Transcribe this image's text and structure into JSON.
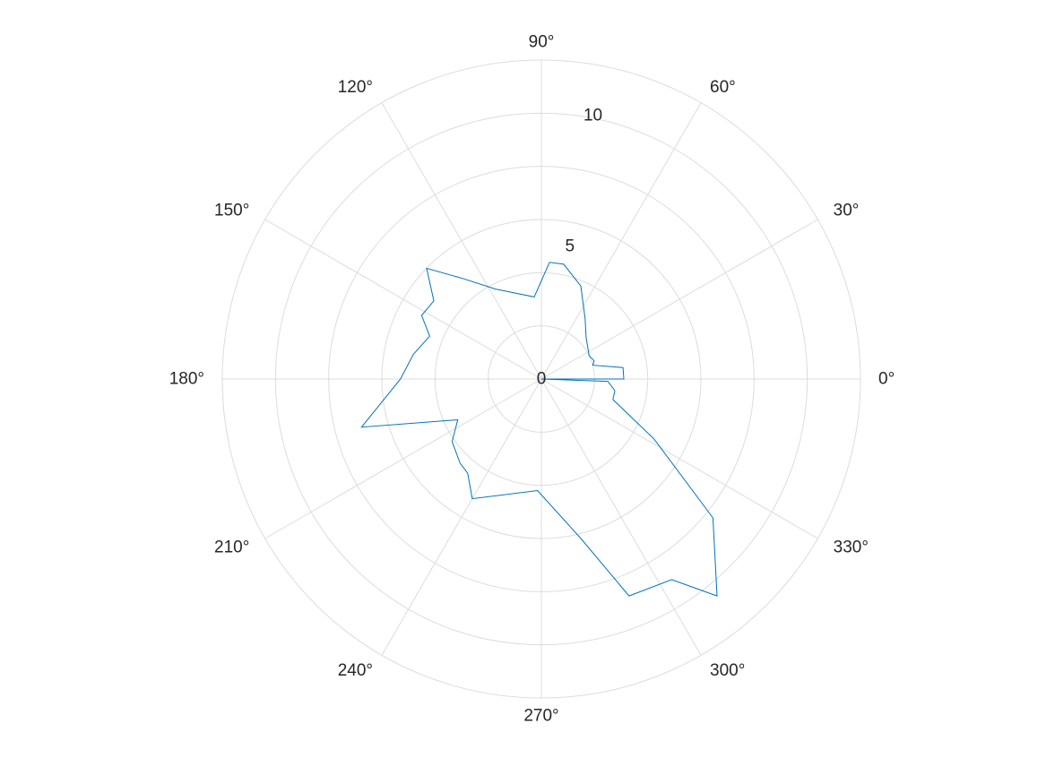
{
  "chart_data": {
    "type": "polar-line",
    "theta_unit": "degrees",
    "theta_direction": "counterclockwise",
    "theta_zero": "right",
    "rlim": [
      0,
      12
    ],
    "r_ticks": [
      0,
      5,
      10
    ],
    "r_tick_labels": [
      "0",
      "5",
      "10"
    ],
    "theta_ticks": [
      0,
      30,
      60,
      90,
      120,
      150,
      180,
      210,
      240,
      270,
      300,
      330
    ],
    "theta_tick_labels": [
      "0°",
      "30°",
      "60°",
      "90°",
      "120°",
      "150°",
      "180°",
      "210°",
      "240°",
      "270°",
      "300°",
      "330°"
    ],
    "grid": true,
    "series": [
      {
        "color": "#0072BD",
        "points": [
          {
            "theta": 180,
            "r": 0.0
          },
          {
            "theta": 0,
            "r": 3.1
          },
          {
            "theta": 8,
            "r": 3.1
          },
          {
            "theta": 15,
            "r": 2.0
          },
          {
            "theta": 19,
            "r": 2.1
          },
          {
            "theta": 26,
            "r": 2.0
          },
          {
            "theta": 43,
            "r": 2.3
          },
          {
            "theta": 54,
            "r": 2.8
          },
          {
            "theta": 67,
            "r": 3.8
          },
          {
            "theta": 79,
            "r": 4.4
          },
          {
            "theta": 86,
            "r": 4.4
          },
          {
            "theta": 95,
            "r": 3.1
          },
          {
            "theta": 117,
            "r": 3.8
          },
          {
            "theta": 128,
            "r": 4.8
          },
          {
            "theta": 136,
            "r": 6.0
          },
          {
            "theta": 144,
            "r": 5.0
          },
          {
            "theta": 152,
            "r": 5.1
          },
          {
            "theta": 159,
            "r": 4.5
          },
          {
            "theta": 169,
            "r": 4.9
          },
          {
            "theta": 180,
            "r": 5.3
          },
          {
            "theta": 195,
            "r": 7.0
          },
          {
            "theta": 206,
            "r": 3.5
          },
          {
            "theta": 215,
            "r": 4.1
          },
          {
            "theta": 226,
            "r": 4.4
          },
          {
            "theta": 232,
            "r": 4.5
          },
          {
            "theta": 240,
            "r": 5.2
          },
          {
            "theta": 268,
            "r": 4.2
          },
          {
            "theta": 284,
            "r": 6.2
          },
          {
            "theta": 292,
            "r": 8.8
          },
          {
            "theta": 303,
            "r": 9.0
          },
          {
            "theta": 309,
            "r": 10.5
          },
          {
            "theta": 321,
            "r": 8.3
          },
          {
            "theta": 332,
            "r": 4.8
          },
          {
            "theta": 344,
            "r": 2.8
          },
          {
            "theta": 351,
            "r": 2.8
          },
          {
            "theta": 358,
            "r": 2.5
          },
          {
            "theta": 180,
            "r": 0.0
          }
        ]
      }
    ]
  }
}
